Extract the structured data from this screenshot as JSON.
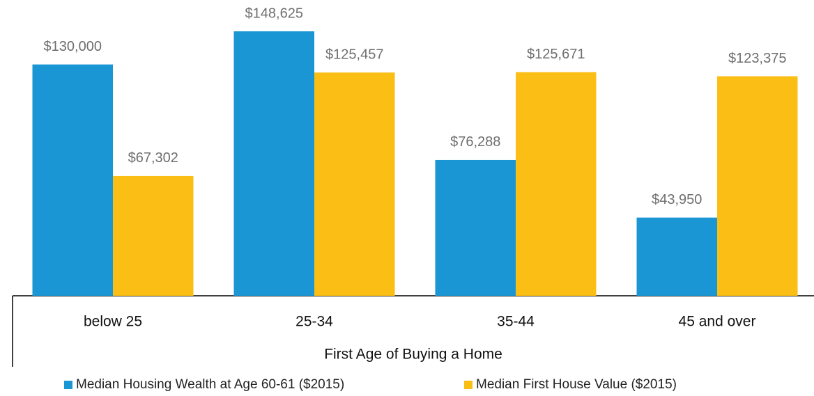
{
  "chart_data": {
    "type": "bar",
    "x_label": "First Age of Buying a Home",
    "categories": [
      "below 25",
      "25-34",
      "35-44",
      "45 and over"
    ],
    "series": [
      {
        "name": "Median Housing Wealth at Age 60-61 ($2015)",
        "color": "#1a96d4",
        "values": [
          130000,
          148625,
          76288,
          43950
        ],
        "value_labels": [
          "$130,000",
          "$148,625",
          "$76,288",
          "$43,950"
        ]
      },
      {
        "name": "Median First House Value ($2015)",
        "color": "#fbbe15",
        "values": [
          67302,
          125457,
          125671,
          123375
        ],
        "value_labels": [
          "$67,302",
          "$125,457",
          "$125,671",
          "$123,375"
        ]
      }
    ],
    "legend": "bottom"
  }
}
